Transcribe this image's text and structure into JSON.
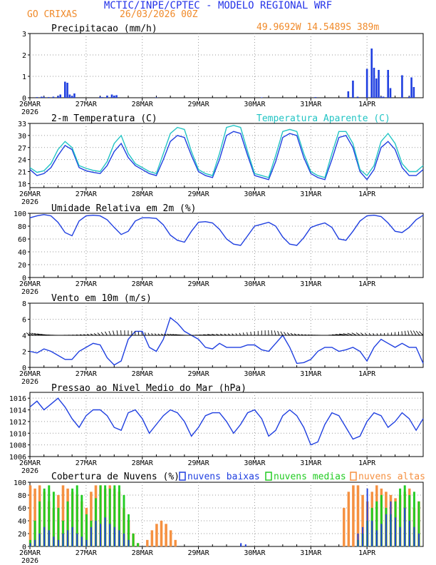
{
  "header": {
    "title": "MCTIC/INPE/CPTEC - MODELO REGIONAL WRF",
    "location": "GO CRIXAS",
    "run": "26/03/2026 00Z",
    "coords": "49.9692W 14.5489S 389m"
  },
  "colors": {
    "blue": "#1f3fe0",
    "teal": "#22c4c4",
    "green": "#22cc22",
    "orange": "#f59040",
    "title_blue": "#2433e8",
    "header_orange": "#f08a2a"
  },
  "time_axis": {
    "labels": [
      "26MAR",
      "27MAR",
      "28MAR",
      "29MAR",
      "30MAR",
      "31MAR",
      "1APR"
    ],
    "year": "2026",
    "total_hours": 168
  },
  "chart_data": [
    {
      "id": "precip",
      "type": "bar",
      "title": "Precipitacao (mm/h)",
      "ylim": [
        0,
        3
      ],
      "yticks": [
        "0",
        "1",
        "2",
        "3"
      ],
      "x_hours": [
        3,
        5,
        6,
        8,
        10,
        12,
        13,
        15,
        16,
        17,
        18,
        19,
        30,
        31,
        33,
        35,
        36,
        37,
        54,
        99,
        122,
        136,
        138,
        140,
        144,
        146,
        147,
        148,
        149,
        150,
        151,
        153,
        154,
        159,
        162,
        163,
        164
      ],
      "values": [
        0.03,
        0.05,
        0.04,
        0.03,
        0.05,
        0.08,
        0.15,
        0.75,
        0.7,
        0.15,
        0.08,
        0.2,
        0.05,
        0.03,
        0.1,
        0.15,
        0.1,
        0.12,
        0.02,
        0.02,
        0.03,
        0.3,
        0.8,
        0.05,
        1.35,
        2.3,
        1.4,
        0.9,
        1.3,
        0.05,
        0.05,
        1.3,
        0.45,
        1.05,
        0.05,
        0.95,
        0.5
      ]
    },
    {
      "id": "temp",
      "type": "line",
      "title": "2-m Temperatura (C)",
      "legend2": "Temperatura Aparente (C)",
      "ylim": [
        17,
        33
      ],
      "yticks": [
        "18",
        "21",
        "24",
        "27",
        "30",
        "33"
      ],
      "series": [
        {
          "name": "2-m Temperatura (C)",
          "color": "blue",
          "x": [
            0,
            3,
            6,
            9,
            12,
            15,
            18,
            21,
            24,
            27,
            30,
            33,
            36,
            39,
            42,
            45,
            48,
            51,
            54,
            57,
            60,
            63,
            66,
            69,
            72,
            75,
            78,
            81,
            84,
            87,
            90,
            93,
            96,
            99,
            102,
            105,
            108,
            111,
            114,
            117,
            120,
            123,
            126,
            129,
            132,
            135,
            138,
            141,
            144,
            147,
            150,
            153,
            156,
            159,
            162,
            165,
            168
          ],
          "values": [
            21.5,
            20.0,
            20.5,
            22.0,
            25.0,
            27.5,
            26.5,
            22.0,
            21.2,
            20.8,
            20.5,
            22.5,
            26.0,
            28.0,
            24.5,
            22.5,
            21.5,
            20.5,
            20.0,
            24.0,
            28.5,
            30.0,
            29.5,
            25.0,
            21.0,
            20.0,
            19.5,
            24.0,
            30.0,
            31.0,
            30.5,
            25.0,
            20.0,
            19.5,
            19.0,
            23.5,
            29.5,
            30.5,
            30.0,
            24.5,
            20.5,
            19.5,
            19.0,
            24.0,
            29.5,
            30.0,
            27.0,
            21.0,
            19.0,
            21.5,
            27.0,
            28.5,
            26.5,
            22.0,
            20.0,
            20.0,
            21.5
          ]
        },
        {
          "name": "Temperatura Aparente (C)",
          "color": "teal",
          "x": [
            0,
            3,
            6,
            9,
            12,
            15,
            18,
            21,
            24,
            27,
            30,
            33,
            36,
            39,
            42,
            45,
            48,
            51,
            54,
            57,
            60,
            63,
            66,
            69,
            72,
            75,
            78,
            81,
            84,
            87,
            90,
            93,
            96,
            99,
            102,
            105,
            108,
            111,
            114,
            117,
            120,
            123,
            126,
            129,
            132,
            135,
            138,
            141,
            144,
            147,
            150,
            153,
            156,
            159,
            162,
            165,
            168
          ],
          "values": [
            22.0,
            20.8,
            21.2,
            23.0,
            26.5,
            28.5,
            27.0,
            22.5,
            21.8,
            21.3,
            21.0,
            23.5,
            28.0,
            30.0,
            25.5,
            23.0,
            22.0,
            21.0,
            20.5,
            25.5,
            30.5,
            32.0,
            31.5,
            26.0,
            21.5,
            20.5,
            20.0,
            25.5,
            32.0,
            32.5,
            32.0,
            26.0,
            20.5,
            20.0,
            19.5,
            25.0,
            31.0,
            31.5,
            31.0,
            25.5,
            21.0,
            20.0,
            19.5,
            25.5,
            31.0,
            31.0,
            28.0,
            21.5,
            20.0,
            22.5,
            28.5,
            30.5,
            28.0,
            23.0,
            21.0,
            21.0,
            22.5
          ]
        }
      ]
    },
    {
      "id": "rh",
      "type": "line",
      "title": "Umidade Relativa em 2m (%)",
      "ylim": [
        0,
        100
      ],
      "yticks": [
        "0",
        "20",
        "40",
        "60",
        "80",
        "100"
      ],
      "series": [
        {
          "name": "Umidade Relativa em 2m (%)",
          "color": "blue",
          "x": [
            0,
            3,
            6,
            9,
            12,
            15,
            18,
            21,
            24,
            27,
            30,
            33,
            36,
            39,
            42,
            45,
            48,
            51,
            54,
            57,
            60,
            63,
            66,
            69,
            72,
            75,
            78,
            81,
            84,
            87,
            90,
            93,
            96,
            99,
            102,
            105,
            108,
            111,
            114,
            117,
            120,
            123,
            126,
            129,
            132,
            135,
            138,
            141,
            144,
            147,
            150,
            153,
            156,
            159,
            162,
            165,
            168
          ],
          "values": [
            93,
            96,
            98,
            96,
            86,
            70,
            65,
            88,
            96,
            97,
            96,
            90,
            78,
            67,
            72,
            88,
            93,
            93,
            92,
            82,
            66,
            58,
            55,
            72,
            86,
            87,
            85,
            75,
            60,
            52,
            50,
            65,
            80,
            83,
            86,
            80,
            63,
            52,
            50,
            62,
            78,
            82,
            85,
            78,
            60,
            58,
            72,
            88,
            96,
            97,
            95,
            85,
            72,
            70,
            78,
            90,
            97
          ]
        }
      ]
    },
    {
      "id": "wind",
      "type": "line",
      "title": "Vento em 10m (m/s)",
      "ylim": [
        0,
        8
      ],
      "yticks": [
        "0",
        "2",
        "4",
        "6",
        "8"
      ],
      "series": [
        {
          "name": "Vento em 10m (m/s)",
          "color": "blue",
          "x": [
            0,
            3,
            6,
            9,
            12,
            15,
            18,
            21,
            24,
            27,
            30,
            33,
            36,
            39,
            42,
            45,
            48,
            51,
            54,
            57,
            60,
            63,
            66,
            69,
            72,
            75,
            78,
            81,
            84,
            87,
            90,
            93,
            96,
            99,
            102,
            105,
            108,
            111,
            114,
            117,
            120,
            123,
            126,
            129,
            132,
            135,
            138,
            141,
            144,
            147,
            150,
            153,
            156,
            159,
            162,
            165,
            168
          ],
          "values": [
            2.0,
            1.8,
            2.3,
            2.0,
            1.5,
            1.0,
            1.0,
            2.0,
            2.5,
            3.0,
            2.8,
            1.2,
            0.3,
            0.8,
            3.5,
            4.5,
            4.5,
            2.5,
            2.0,
            3.5,
            6.2,
            5.5,
            4.5,
            4.0,
            3.5,
            2.5,
            2.3,
            3.0,
            2.5,
            2.5,
            2.5,
            2.8,
            2.8,
            2.2,
            2.0,
            3.0,
            4.0,
            2.5,
            0.5,
            0.6,
            1.0,
            2.0,
            2.5,
            2.5,
            2.0,
            2.2,
            2.5,
            2.0,
            0.8,
            2.5,
            3.5,
            3.0,
            2.5,
            3.0,
            2.5,
            2.5,
            0.5
          ]
        }
      ],
      "barbs": "wind vectors along the 4 m/s line"
    },
    {
      "id": "pressure",
      "type": "line",
      "title": "Pressao ao Nivel Medio do Mar (hPa)",
      "ylim": [
        1006,
        1017
      ],
      "yticks": [
        "1006",
        "1008",
        "1010",
        "1012",
        "1014",
        "1016"
      ],
      "series": [
        {
          "name": "Pressao ao Nivel Medio do Mar (hPa)",
          "color": "blue",
          "x": [
            0,
            3,
            6,
            9,
            12,
            15,
            18,
            21,
            24,
            27,
            30,
            33,
            36,
            39,
            42,
            45,
            48,
            51,
            54,
            57,
            60,
            63,
            66,
            69,
            72,
            75,
            78,
            81,
            84,
            87,
            90,
            93,
            96,
            99,
            102,
            105,
            108,
            111,
            114,
            117,
            120,
            123,
            126,
            129,
            132,
            135,
            138,
            141,
            144,
            147,
            150,
            153,
            156,
            159,
            162,
            165,
            168
          ],
          "values": [
            1014.5,
            1015.5,
            1014.0,
            1015.0,
            1016.0,
            1014.5,
            1012.5,
            1011.0,
            1013.0,
            1014.0,
            1014.0,
            1013.0,
            1011.0,
            1010.5,
            1013.5,
            1014.0,
            1012.5,
            1010.0,
            1011.5,
            1013.0,
            1014.0,
            1013.5,
            1012.0,
            1009.5,
            1011.0,
            1013.0,
            1013.5,
            1013.5,
            1012.0,
            1010.0,
            1011.5,
            1013.5,
            1014.0,
            1012.5,
            1009.5,
            1010.5,
            1013.0,
            1014.0,
            1013.0,
            1011.0,
            1008.0,
            1008.5,
            1011.5,
            1013.5,
            1013.0,
            1011.0,
            1009.0,
            1009.5,
            1012.0,
            1013.5,
            1013.0,
            1011.0,
            1012.0,
            1013.5,
            1012.5,
            1010.5,
            1012.5
          ]
        }
      ]
    },
    {
      "id": "clouds",
      "type": "bar",
      "title": "Cobertura de Nuvens (%)",
      "ylim": [
        0,
        100
      ],
      "yticks": [
        "0",
        "20",
        "40",
        "60",
        "80",
        "100"
      ],
      "legend": [
        "nuvens baixas",
        "nuvens medias",
        "nuvens altas"
      ],
      "series": [
        {
          "name": "nuvens altas",
          "color": "orange",
          "x": [
            0,
            2,
            4,
            6,
            8,
            10,
            12,
            14,
            16,
            18,
            20,
            22,
            24,
            26,
            28,
            30,
            32,
            34,
            36,
            38,
            40,
            42,
            44,
            46,
            48,
            50,
            52,
            54,
            56,
            58,
            60,
            62,
            134,
            136,
            138,
            140,
            142,
            144,
            146,
            148,
            150,
            152,
            154,
            156,
            158,
            160,
            162,
            164,
            166
          ],
          "values": [
            95,
            90,
            95,
            85,
            70,
            60,
            80,
            95,
            90,
            85,
            80,
            70,
            60,
            85,
            95,
            95,
            90,
            95,
            90,
            85,
            60,
            40,
            20,
            5,
            0,
            10,
            25,
            35,
            40,
            35,
            25,
            10,
            60,
            85,
            95,
            95,
            80,
            70,
            85,
            95,
            90,
            85,
            80,
            75,
            80,
            85,
            90,
            60,
            70
          ]
        },
        {
          "name": "nuvens medias",
          "color": "green",
          "x": [
            0,
            2,
            4,
            6,
            8,
            10,
            12,
            14,
            16,
            18,
            20,
            22,
            24,
            26,
            28,
            30,
            32,
            34,
            36,
            38,
            40,
            42,
            44,
            46,
            140,
            142,
            144,
            146,
            148,
            150,
            152,
            154,
            156,
            158,
            160,
            162,
            164,
            166
          ],
          "values": [
            10,
            40,
            70,
            90,
            95,
            85,
            60,
            40,
            70,
            90,
            95,
            80,
            50,
            40,
            75,
            95,
            95,
            90,
            95,
            95,
            80,
            50,
            20,
            5,
            10,
            20,
            40,
            60,
            70,
            80,
            60,
            50,
            70,
            90,
            95,
            80,
            85,
            70
          ]
        },
        {
          "name": "nuvens baixas",
          "color": "blue",
          "x": [
            0,
            2,
            4,
            6,
            8,
            10,
            12,
            14,
            16,
            18,
            20,
            22,
            24,
            26,
            28,
            30,
            32,
            34,
            36,
            38,
            40,
            42,
            90,
            92,
            140,
            142,
            144,
            146,
            148,
            150,
            152,
            154,
            156,
            158,
            160,
            162,
            164,
            166
          ],
          "values": [
            5,
            10,
            20,
            30,
            25,
            15,
            10,
            20,
            25,
            30,
            20,
            15,
            10,
            30,
            40,
            35,
            45,
            35,
            30,
            25,
            20,
            10,
            5,
            3,
            20,
            30,
            90,
            40,
            25,
            35,
            50,
            70,
            45,
            30,
            60,
            40,
            30,
            20
          ]
        }
      ]
    }
  ]
}
